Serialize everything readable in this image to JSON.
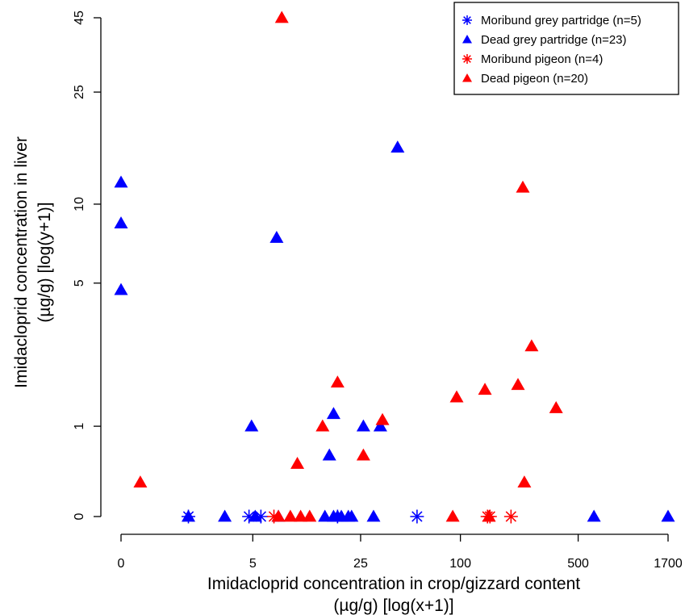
{
  "chart_data": {
    "type": "scatter",
    "title": "",
    "xlabel_lines": [
      "Imidacloprid concentration in crop/gizzard content",
      "(µg/g)  [log(x+1)]"
    ],
    "ylabel_lines": [
      "Imidacloprid concentration in liver",
      "(µg/g)  [log(y+1)]"
    ],
    "x_scale": "log(x+1)",
    "y_scale": "log(y+1)",
    "xlim": [
      0,
      1700
    ],
    "ylim": [
      0,
      45
    ],
    "x_ticks": [
      0,
      5,
      25,
      100,
      500,
      1700
    ],
    "x_tick_labels": [
      "0",
      "5",
      "25",
      "100",
      "500",
      "1700"
    ],
    "y_ticks": [
      0,
      1,
      5,
      10,
      25,
      45
    ],
    "y_tick_labels": [
      "0",
      "1",
      "5",
      "10",
      "25",
      "45"
    ],
    "grid": false,
    "legend_position": "top-right",
    "series": [
      {
        "name": "Moribund grey partridge (n=5)",
        "marker": "star",
        "color": "#0000ff",
        "points": [
          {
            "x": 1.5,
            "y": 0
          },
          {
            "x": 4.7,
            "y": 0
          },
          {
            "x": 5.7,
            "y": 0
          },
          {
            "x": 18,
            "y": 0
          },
          {
            "x": 55,
            "y": 0
          }
        ]
      },
      {
        "name": "Dead grey partridge (n=23)",
        "marker": "triangle",
        "color": "#0000ff",
        "points": [
          {
            "x": 0,
            "y": 12
          },
          {
            "x": 0,
            "y": 8.5
          },
          {
            "x": 0,
            "y": 4.7
          },
          {
            "x": 4.9,
            "y": 1.0
          },
          {
            "x": 7.3,
            "y": 7.5
          },
          {
            "x": 16,
            "y": 0.6
          },
          {
            "x": 17,
            "y": 1.2
          },
          {
            "x": 26,
            "y": 1.0
          },
          {
            "x": 33,
            "y": 1.0
          },
          {
            "x": 42,
            "y": 16
          },
          {
            "x": 1.5,
            "y": 0
          },
          {
            "x": 3.1,
            "y": 0
          },
          {
            "x": 5.2,
            "y": 0
          },
          {
            "x": 7.5,
            "y": 0
          },
          {
            "x": 15,
            "y": 0
          },
          {
            "x": 17,
            "y": 0
          },
          {
            "x": 19,
            "y": 0
          },
          {
            "x": 21,
            "y": 0
          },
          {
            "x": 22,
            "y": 0
          },
          {
            "x": 30,
            "y": 0
          },
          {
            "x": 620,
            "y": 0
          },
          {
            "x": 1700,
            "y": 0
          },
          {
            "x": 18,
            "y": 0
          }
        ]
      },
      {
        "name": "Moribund pigeon (n=4)",
        "marker": "star",
        "color": "#ff0000",
        "points": [
          {
            "x": 7.0,
            "y": 0
          },
          {
            "x": 145,
            "y": 0
          },
          {
            "x": 150,
            "y": 0
          },
          {
            "x": 200,
            "y": 0
          }
        ]
      },
      {
        "name": "Dead pigeon (n=20)",
        "marker": "triangle",
        "color": "#ff0000",
        "points": [
          {
            "x": 0.3,
            "y": 0.3
          },
          {
            "x": 7.9,
            "y": 45
          },
          {
            "x": 10,
            "y": 0.5
          },
          {
            "x": 14.5,
            "y": 1.0
          },
          {
            "x": 18,
            "y": 1.8
          },
          {
            "x": 26,
            "y": 0.6
          },
          {
            "x": 34,
            "y": 1.1
          },
          {
            "x": 95,
            "y": 1.5
          },
          {
            "x": 140,
            "y": 1.65
          },
          {
            "x": 220,
            "y": 1.75
          },
          {
            "x": 235,
            "y": 11.5
          },
          {
            "x": 240,
            "y": 0.3
          },
          {
            "x": 265,
            "y": 2.7
          },
          {
            "x": 370,
            "y": 1.3
          },
          {
            "x": 7.5,
            "y": 0
          },
          {
            "x": 9,
            "y": 0
          },
          {
            "x": 10.5,
            "y": 0
          },
          {
            "x": 12,
            "y": 0
          },
          {
            "x": 90,
            "y": 0
          },
          {
            "x": 148,
            "y": 0
          }
        ]
      }
    ]
  }
}
